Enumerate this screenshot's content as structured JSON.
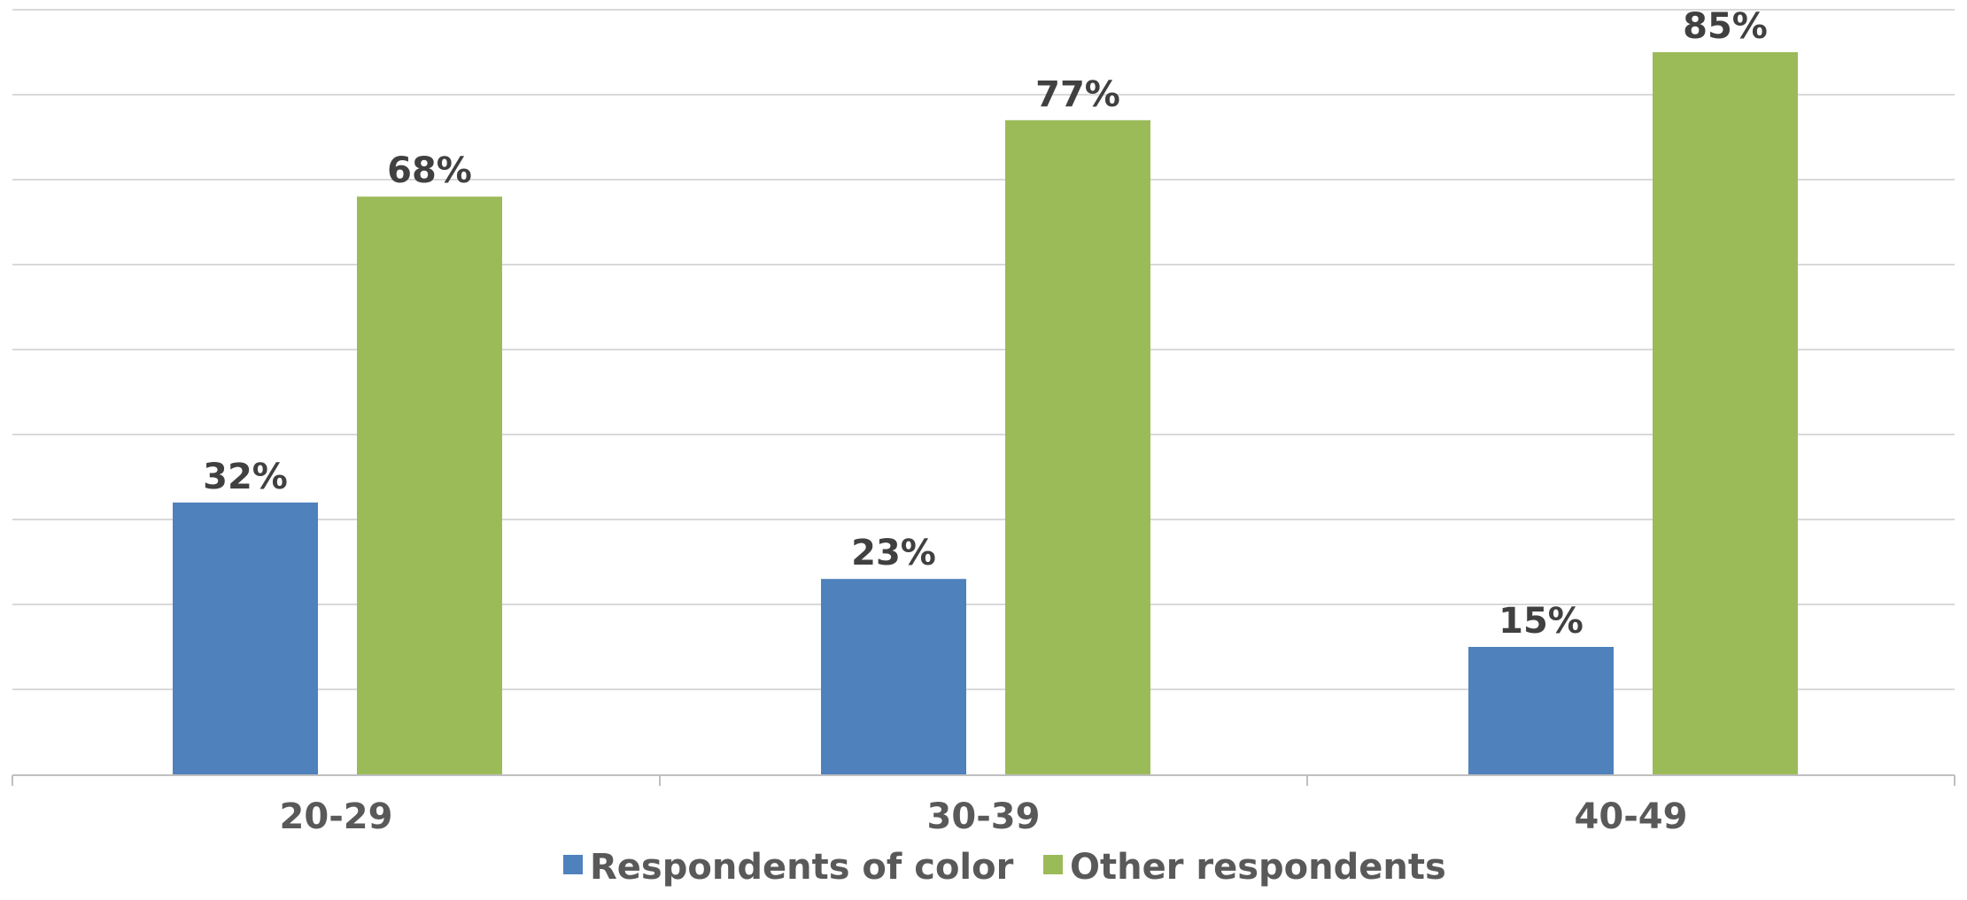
{
  "chart_data": {
    "type": "bar",
    "title": "",
    "xlabel": "",
    "ylabel": "",
    "categories": [
      "20-29",
      "30-39",
      "40-49"
    ],
    "series": [
      {
        "name": "Respondents of color",
        "color": "#4F81BD",
        "values": [
          32,
          23,
          15
        ],
        "labels": [
          "32%",
          "23%",
          "15%"
        ]
      },
      {
        "name": "Other respondents",
        "color": "#9BBB59",
        "values": [
          68,
          77,
          85
        ],
        "labels": [
          "68%",
          "77%",
          "85%"
        ]
      }
    ],
    "ylim": [
      0,
      90
    ],
    "grid": true,
    "legend_position": "bottom",
    "gridline_color": "#D9D9D9",
    "axis_color": "#BFBFBF"
  }
}
